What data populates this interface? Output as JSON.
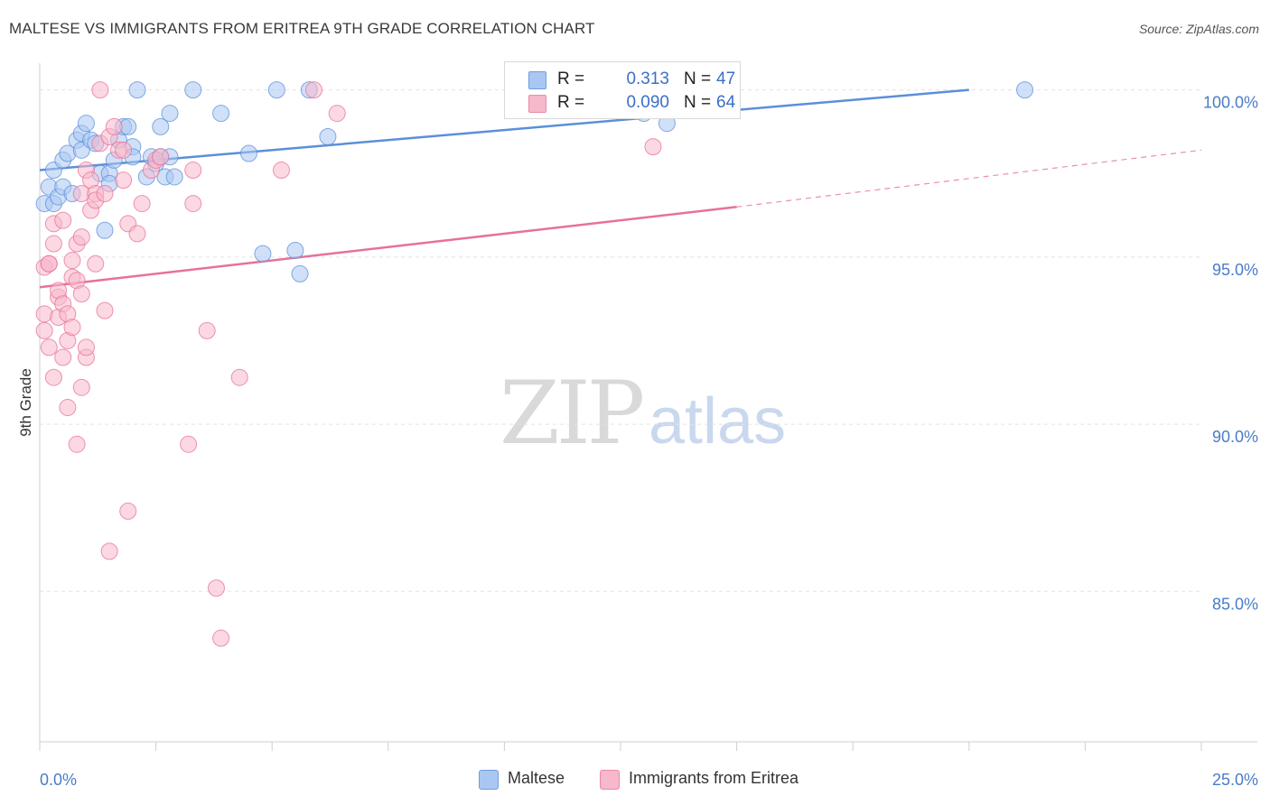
{
  "title": "MALTESE VS IMMIGRANTS FROM ERITREA 9TH GRADE CORRELATION CHART",
  "source": "Source: ZipAtlas.com",
  "watermark": {
    "zip": "ZIP",
    "atlas": "atlas"
  },
  "legend": {
    "r_label": "R =",
    "n_label": "N =",
    "rows": [
      {
        "r": "0.313",
        "n": "47",
        "color": "#a9c7f2"
      },
      {
        "r": "0.090",
        "n": "64",
        "color": "#f7b8cb"
      }
    ]
  },
  "bottom_legend": [
    {
      "label": "Maltese",
      "color": "#a9c7f2"
    },
    {
      "label": "Immigrants from Eritrea",
      "color": "#f7b8cb"
    }
  ],
  "chart_data": {
    "type": "scatter",
    "title": "MALTESE VS IMMIGRANTS FROM ERITREA 9TH GRADE CORRELATION CHART",
    "xlabel": "",
    "ylabel": "9th Grade",
    "xlim": [
      0,
      25
    ],
    "ylim": [
      80.5,
      100.8
    ],
    "x_tick_labels": [
      "0.0%",
      "25.0%"
    ],
    "y_ticks": [
      85,
      90,
      95,
      100
    ],
    "y_tick_labels": [
      "85.0%",
      "90.0%",
      "95.0%",
      "100.0%"
    ],
    "grid": true,
    "legend_position": "top-center",
    "series": [
      {
        "name": "Maltese",
        "color": "#5b8fd9",
        "fill": "#a9c7f2",
        "trend": {
          "x": [
            0,
            20
          ],
          "y": [
            97.6,
            100.0
          ],
          "dashed_to": null
        },
        "points": [
          [
            0.1,
            96.6
          ],
          [
            0.2,
            97.1
          ],
          [
            0.3,
            97.6
          ],
          [
            0.3,
            96.6
          ],
          [
            0.4,
            96.8
          ],
          [
            0.5,
            97.9
          ],
          [
            0.5,
            97.1
          ],
          [
            0.6,
            98.1
          ],
          [
            0.7,
            96.9
          ],
          [
            0.8,
            98.5
          ],
          [
            0.9,
            98.7
          ],
          [
            0.9,
            98.2
          ],
          [
            1.0,
            99.0
          ],
          [
            1.1,
            98.5
          ],
          [
            1.2,
            98.4
          ],
          [
            1.3,
            97.5
          ],
          [
            1.4,
            95.8
          ],
          [
            1.5,
            97.5
          ],
          [
            1.5,
            97.2
          ],
          [
            1.6,
            97.9
          ],
          [
            1.7,
            98.5
          ],
          [
            1.8,
            98.9
          ],
          [
            1.9,
            98.9
          ],
          [
            2.0,
            98.3
          ],
          [
            2.0,
            98.0
          ],
          [
            2.1,
            100.0
          ],
          [
            2.3,
            97.4
          ],
          [
            2.4,
            98.0
          ],
          [
            2.5,
            97.8
          ],
          [
            2.6,
            98.0
          ],
          [
            2.6,
            98.9
          ],
          [
            2.7,
            97.4
          ],
          [
            2.8,
            98.0
          ],
          [
            2.8,
            99.3
          ],
          [
            2.9,
            97.4
          ],
          [
            3.3,
            100.0
          ],
          [
            3.9,
            99.3
          ],
          [
            4.5,
            98.1
          ],
          [
            4.8,
            95.1
          ],
          [
            5.1,
            100.0
          ],
          [
            5.5,
            95.2
          ],
          [
            5.6,
            94.5
          ],
          [
            5.8,
            100.0
          ],
          [
            6.2,
            98.6
          ],
          [
            13.0,
            99.3
          ],
          [
            13.5,
            99.0
          ],
          [
            21.2,
            100.0
          ]
        ]
      },
      {
        "name": "Immigrants from Eritrea",
        "color": "#e8709a",
        "fill": "#f7b8cb",
        "trend": {
          "x": [
            0,
            15
          ],
          "y": [
            94.1,
            96.5
          ],
          "dashed_to": [
            25,
            98.2
          ]
        },
        "points": [
          [
            0.1,
            94.7
          ],
          [
            0.1,
            93.3
          ],
          [
            0.1,
            92.8
          ],
          [
            0.2,
            92.3
          ],
          [
            0.2,
            94.8
          ],
          [
            0.2,
            94.8
          ],
          [
            0.3,
            91.4
          ],
          [
            0.3,
            95.4
          ],
          [
            0.3,
            96.0
          ],
          [
            0.4,
            93.8
          ],
          [
            0.4,
            94.0
          ],
          [
            0.4,
            93.2
          ],
          [
            0.5,
            93.6
          ],
          [
            0.5,
            96.1
          ],
          [
            0.5,
            92.0
          ],
          [
            0.6,
            93.3
          ],
          [
            0.6,
            92.5
          ],
          [
            0.6,
            90.5
          ],
          [
            0.7,
            94.9
          ],
          [
            0.7,
            94.4
          ],
          [
            0.7,
            92.9
          ],
          [
            0.8,
            89.4
          ],
          [
            0.8,
            95.4
          ],
          [
            0.8,
            94.3
          ],
          [
            0.9,
            93.9
          ],
          [
            0.9,
            96.9
          ],
          [
            0.9,
            91.1
          ],
          [
            0.9,
            95.6
          ],
          [
            1.0,
            97.6
          ],
          [
            1.0,
            92.0
          ],
          [
            1.0,
            92.3
          ],
          [
            1.1,
            97.3
          ],
          [
            1.1,
            96.4
          ],
          [
            1.2,
            96.9
          ],
          [
            1.2,
            94.8
          ],
          [
            1.2,
            96.7
          ],
          [
            1.3,
            100.0
          ],
          [
            1.3,
            98.4
          ],
          [
            1.4,
            96.9
          ],
          [
            1.4,
            93.4
          ],
          [
            1.5,
            98.6
          ],
          [
            1.5,
            86.2
          ],
          [
            1.6,
            98.9
          ],
          [
            1.7,
            98.2
          ],
          [
            1.8,
            97.3
          ],
          [
            1.8,
            98.2
          ],
          [
            1.9,
            96.0
          ],
          [
            1.9,
            87.4
          ],
          [
            2.1,
            95.7
          ],
          [
            2.2,
            96.6
          ],
          [
            2.4,
            97.6
          ],
          [
            2.5,
            97.9
          ],
          [
            2.6,
            98.0
          ],
          [
            3.2,
            89.4
          ],
          [
            3.3,
            96.6
          ],
          [
            3.3,
            97.6
          ],
          [
            3.6,
            92.8
          ],
          [
            3.8,
            85.1
          ],
          [
            3.9,
            83.6
          ],
          [
            4.3,
            91.4
          ],
          [
            5.2,
            97.6
          ],
          [
            5.9,
            100.0
          ],
          [
            6.4,
            99.3
          ],
          [
            13.2,
            98.3
          ]
        ]
      }
    ]
  }
}
